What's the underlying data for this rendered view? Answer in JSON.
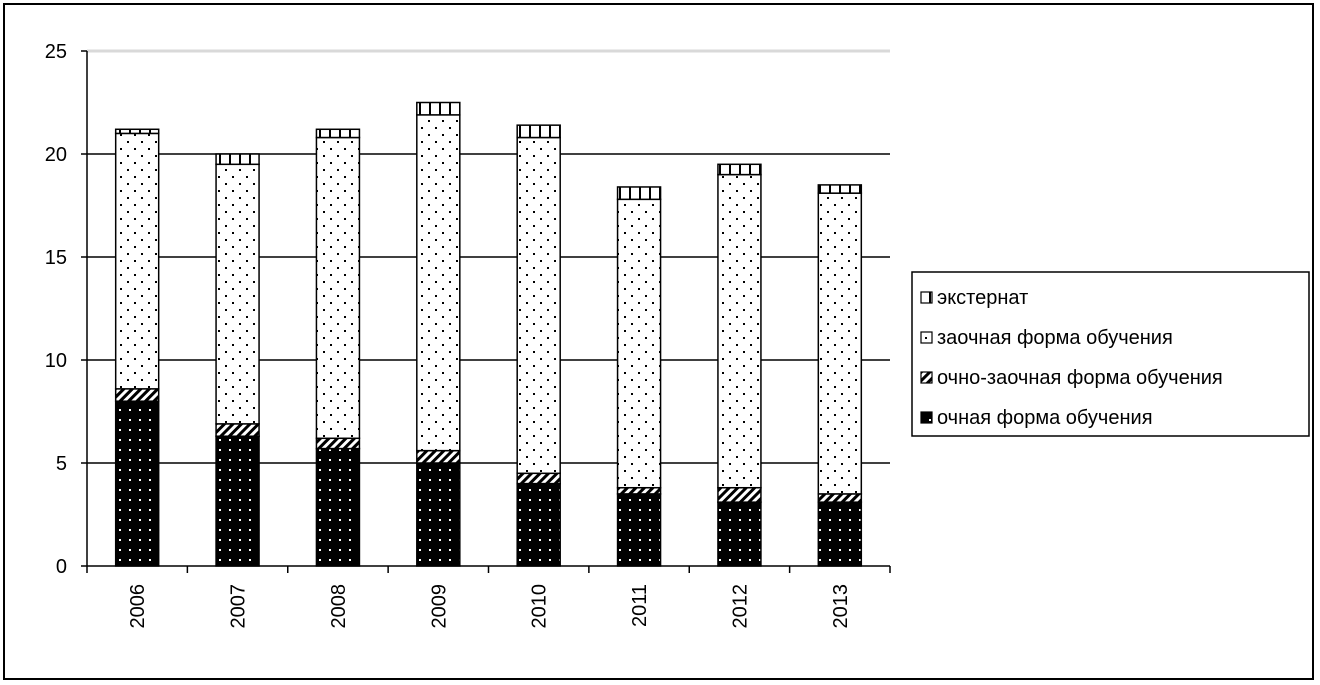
{
  "chart_data": {
    "type": "bar",
    "stacked": true,
    "categories": [
      "2006",
      "2007",
      "2008",
      "2009",
      "2010",
      "2011",
      "2012",
      "2013"
    ],
    "series": [
      {
        "name": "очная форма обучения",
        "pattern": "solid-dots",
        "values": [
          8.0,
          6.3,
          5.7,
          5.0,
          4.0,
          3.5,
          3.1,
          3.1
        ]
      },
      {
        "name": "очно-заочная форма обучения",
        "pattern": "hatched",
        "values": [
          0.6,
          0.6,
          0.5,
          0.6,
          0.5,
          0.3,
          0.7,
          0.4
        ]
      },
      {
        "name": "заочная форма обучения",
        "pattern": "dotted",
        "values": [
          12.4,
          12.6,
          14.6,
          16.3,
          16.3,
          14.0,
          15.2,
          14.6
        ]
      },
      {
        "name": "экстернат",
        "pattern": "vertical-stripes",
        "values": [
          0.2,
          0.5,
          0.4,
          0.6,
          0.6,
          0.6,
          0.5,
          0.4
        ]
      }
    ],
    "legend_order": [
      "экстернат",
      "заочная форма обучения",
      "очно-заочная форма обучения",
      "очная форма обучения"
    ],
    "y_ticks": [
      "0",
      "5",
      "10",
      "15",
      "20",
      "25"
    ],
    "ylim": [
      0,
      25
    ],
    "y_tick_step": 5,
    "grid": true,
    "legend_position": "right",
    "colors": {
      "ink": "#000000",
      "paper": "#ffffff",
      "top_gridline": "#d9d9d9"
    }
  }
}
